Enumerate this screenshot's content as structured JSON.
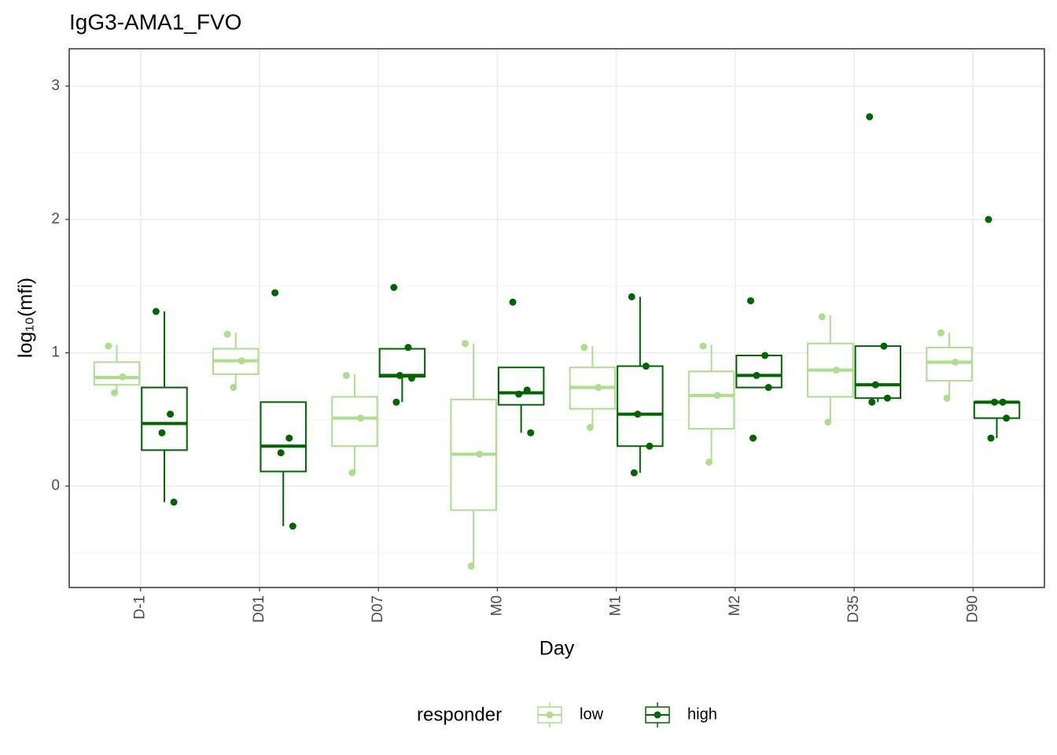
{
  "chart_data": {
    "type": "boxplot",
    "title": "IgG3-AMA1_FVO",
    "x_label": "Day",
    "y_label": "log₁₀(mfi)",
    "legend_title": "responder",
    "legend_position": "bottom",
    "grid": true,
    "categories": [
      "D-1",
      "D01",
      "D07",
      "M0",
      "M1",
      "M2",
      "D35",
      "D90"
    ],
    "ylim": [
      -0.76,
      3.28
    ],
    "yticks": [
      0,
      1,
      2,
      3
    ],
    "yminorticks": [
      -0.5,
      0.5,
      1.5,
      2.5
    ],
    "series": [
      {
        "name": "low",
        "color": "#addd8e",
        "boxes": [
          {
            "min": 0.71,
            "q1": 0.76,
            "median": 0.815,
            "q3": 0.93,
            "max": 1.06
          },
          {
            "min": 0.74,
            "q1": 0.84,
            "median": 0.94,
            "q3": 1.03,
            "max": 1.15
          },
          {
            "min": 0.1,
            "q1": 0.3,
            "median": 0.51,
            "q3": 0.67,
            "max": 0.84
          },
          {
            "min": -0.6,
            "q1": -0.18,
            "median": 0.24,
            "q3": 0.65,
            "max": 1.07
          },
          {
            "min": 0.44,
            "q1": 0.58,
            "median": 0.74,
            "q3": 0.89,
            "max": 1.05
          },
          {
            "min": 0.18,
            "q1": 0.43,
            "median": 0.68,
            "q3": 0.86,
            "max": 1.06
          },
          {
            "min": 0.48,
            "q1": 0.67,
            "median": 0.87,
            "q3": 1.07,
            "max": 1.28
          },
          {
            "min": 0.66,
            "q1": 0.79,
            "median": 0.93,
            "q3": 1.04,
            "max": 1.15
          }
        ],
        "points": [
          [
            1.05,
            0.82,
            0.7
          ],
          [
            1.14,
            0.94,
            0.74
          ],
          [
            0.83,
            0.51,
            0.1
          ],
          [
            1.07,
            0.24,
            -0.6
          ],
          [
            1.04,
            0.74,
            0.44
          ],
          [
            1.05,
            0.68,
            0.18
          ],
          [
            1.27,
            0.87,
            0.48
          ],
          [
            1.15,
            0.93,
            0.66
          ]
        ]
      },
      {
        "name": "high",
        "color": "#006400",
        "boxes": [
          {
            "min": -0.12,
            "q1": 0.27,
            "median": 0.47,
            "q3": 0.74,
            "max": 1.31
          },
          {
            "min": -0.3,
            "q1": 0.11,
            "median": 0.3,
            "q3": 0.63,
            "max": 0.63
          },
          {
            "min": 0.63,
            "q1": 0.82,
            "median": 0.83,
            "q3": 1.03,
            "max": 1.03
          },
          {
            "min": 0.4,
            "q1": 0.61,
            "median": 0.7,
            "q3": 0.89,
            "max": 0.89
          },
          {
            "min": 0.1,
            "q1": 0.3,
            "median": 0.54,
            "q3": 0.9,
            "max": 1.42
          },
          {
            "min": 0.74,
            "q1": 0.74,
            "median": 0.83,
            "q3": 0.98,
            "max": 0.98
          },
          {
            "min": 0.63,
            "q1": 0.66,
            "median": 0.76,
            "q3": 1.05,
            "max": 1.05
          },
          {
            "min": 0.36,
            "q1": 0.51,
            "median": 0.63,
            "q3": 0.63,
            "max": 0.63
          }
        ],
        "points": [
          [
            1.31,
            0.54,
            0.4,
            -0.12
          ],
          [
            1.45,
            0.36,
            0.25,
            -0.3
          ],
          [
            1.49,
            1.04,
            0.83,
            0.81,
            0.63
          ],
          [
            1.38,
            0.72,
            0.69,
            0.4
          ],
          [
            1.42,
            0.9,
            0.54,
            0.3,
            0.1
          ],
          [
            1.39,
            0.98,
            0.83,
            0.74,
            0.36
          ],
          [
            2.77,
            1.05,
            0.76,
            0.66,
            0.63
          ],
          [
            2.0,
            0.63,
            0.63,
            0.51,
            0.36
          ]
        ]
      }
    ]
  }
}
